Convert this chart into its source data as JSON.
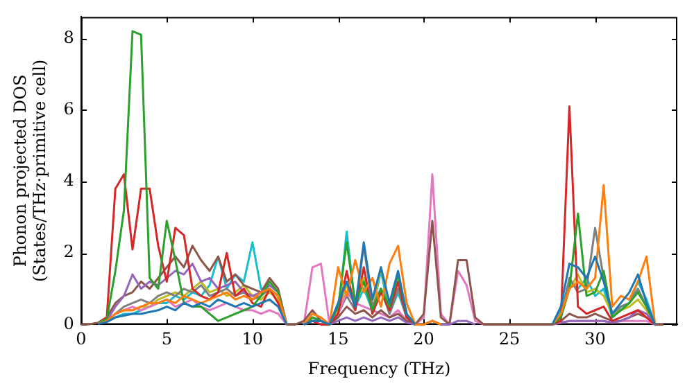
{
  "chart_data": {
    "type": "line",
    "xlabel": "Frequency (THz)",
    "ylabel": "Phonon projected DOS\n(States/THz·primitive cell)",
    "xlim": [
      0,
      34.8
    ],
    "ylim": [
      0,
      8.6
    ],
    "xticks": [
      0,
      5,
      10,
      15,
      20,
      25,
      30
    ],
    "yticks": [
      0,
      2,
      4,
      6,
      8
    ],
    "grid": false,
    "legend": false,
    "marker": "none",
    "line_style": "solid",
    "x": [
      0,
      0.5,
      1,
      1.5,
      2,
      2.5,
      3,
      3.5,
      4,
      4.5,
      5,
      5.5,
      6,
      6.5,
      7,
      7.5,
      8,
      8.5,
      9,
      9.5,
      10,
      10.5,
      11,
      11.5,
      12,
      12.5,
      13,
      13.5,
      14,
      14.5,
      15,
      15.5,
      16,
      16.5,
      17,
      17.5,
      18,
      18.5,
      19,
      19.5,
      20,
      20.5,
      21,
      21.5,
      22,
      22.5,
      23,
      23.5,
      24,
      24.5,
      25,
      25.5,
      26,
      26.5,
      27,
      27.5,
      28,
      28.5,
      29,
      29.5,
      30,
      30.5,
      31,
      31.5,
      32,
      32.5,
      33,
      33.5,
      34
    ],
    "series": [
      {
        "color": "#1f77b4",
        "values": [
          null,
          null,
          0.02,
          0.07,
          0.2,
          0.25,
          0.3,
          0.3,
          0.35,
          0.4,
          0.5,
          0.4,
          0.6,
          0.5,
          0.6,
          0.5,
          0.7,
          0.6,
          0.5,
          0.6,
          0.5,
          0.6,
          0.7,
          0.5,
          0,
          null,
          0,
          0.1,
          0.1,
          0,
          0.6,
          1.2,
          0.5,
          2.3,
          0.7,
          1.6,
          0.6,
          1.5,
          0.3,
          0,
          null,
          null,
          null,
          null,
          null,
          null,
          null,
          null,
          null,
          null,
          null,
          null,
          null,
          null,
          null,
          0,
          0.5,
          1.7,
          1.6,
          1.3,
          1.9,
          1.2,
          0.3,
          0.6,
          0.9,
          1.4,
          0.6,
          0,
          null
        ]
      },
      {
        "color": "#ff7f0e",
        "values": [
          null,
          null,
          0.03,
          0.1,
          0.3,
          0.4,
          0.4,
          0.5,
          0.6,
          0.6,
          0.7,
          0.6,
          0.8,
          0.7,
          0.6,
          0.7,
          0.8,
          0.9,
          0.7,
          0.8,
          0.7,
          0.9,
          1.0,
          0.8,
          0,
          null,
          0,
          0.3,
          0.2,
          0,
          1.6,
          0.8,
          1.8,
          0.9,
          1.3,
          0.5,
          1.7,
          2.2,
          0.6,
          0,
          0,
          0.1,
          0,
          null,
          null,
          null,
          null,
          null,
          null,
          null,
          null,
          null,
          null,
          null,
          null,
          0,
          0.3,
          1.0,
          1.2,
          1.0,
          1.3,
          3.9,
          0.5,
          0.8,
          0.7,
          1.2,
          1.9,
          0,
          null
        ]
      },
      {
        "color": "#2ca02c",
        "values": [
          null,
          null,
          0.05,
          0.15,
          1.5,
          3.2,
          8.2,
          8.1,
          1.3,
          1.0,
          2.9,
          1.8,
          0.6,
          0.5,
          0.5,
          0.3,
          0.1,
          0.2,
          0.3,
          0.4,
          0.5,
          0.8,
          1.2,
          0.9,
          0,
          null,
          0,
          0.2,
          0.1,
          0,
          0.5,
          2.3,
          0.6,
          1.2,
          0.4,
          1.0,
          0.5,
          1.4,
          0.3,
          0,
          0,
          0.1,
          0,
          null,
          null,
          null,
          null,
          null,
          null,
          null,
          null,
          null,
          null,
          null,
          null,
          0,
          0.2,
          1.0,
          3.1,
          0.8,
          0.9,
          1.5,
          0.2,
          0.4,
          0.6,
          0.9,
          0.5,
          0,
          null
        ]
      },
      {
        "color": "#d62728",
        "values": [
          null,
          null,
          0.05,
          0.2,
          3.8,
          4.2,
          2.1,
          3.8,
          3.8,
          2.2,
          1.2,
          2.7,
          2.5,
          1.0,
          0.8,
          0.7,
          0.9,
          2.0,
          0.8,
          1.0,
          0.6,
          0.5,
          1.0,
          0.6,
          0,
          null,
          0,
          0.1,
          0,
          0,
          0.3,
          1.5,
          0.4,
          1.6,
          0.3,
          0.9,
          0.4,
          1.2,
          0.2,
          0,
          null,
          null,
          null,
          null,
          null,
          null,
          null,
          null,
          null,
          null,
          null,
          null,
          null,
          null,
          null,
          0,
          0.1,
          6.1,
          0.5,
          0.3,
          0.4,
          0.5,
          0.1,
          0.2,
          0.3,
          0.4,
          0.2,
          0,
          null
        ]
      },
      {
        "color": "#9467bd",
        "values": [
          null,
          null,
          0.03,
          0.1,
          0.5,
          0.8,
          1.4,
          1.0,
          1.2,
          1.1,
          1.3,
          1.5,
          1.4,
          1.7,
          1.2,
          1.3,
          1.0,
          1.1,
          1.2,
          0.9,
          0.8,
          0.9,
          1.1,
          0.9,
          0,
          null,
          0,
          0.1,
          0.1,
          0,
          0.1,
          0.2,
          0.1,
          0.2,
          0.1,
          0.2,
          0.1,
          0.2,
          0.05,
          0,
          0,
          0.1,
          0,
          0,
          0.1,
          0.1,
          0,
          null,
          null,
          null,
          null,
          null,
          null,
          null,
          null,
          0,
          0.05,
          0.1,
          0.1,
          0.1,
          0.1,
          0.1,
          0.05,
          0.1,
          0.2,
          0.4,
          0.3,
          0,
          null
        ]
      },
      {
        "color": "#8c564b",
        "values": [
          0,
          0.01,
          0.05,
          0.2,
          0.6,
          0.8,
          0.9,
          1.2,
          1.0,
          1.3,
          1.6,
          1.9,
          1.6,
          2.2,
          1.8,
          1.5,
          1.9,
          1.2,
          1.4,
          1.1,
          1.0,
          0.9,
          1.3,
          1.0,
          0,
          0,
          0.1,
          0.4,
          0.1,
          0,
          0.2,
          0.5,
          0.3,
          0.4,
          0.2,
          0.4,
          0.2,
          0.3,
          0.1,
          0,
          0.3,
          2.9,
          0.2,
          0,
          1.8,
          1.8,
          0.2,
          0,
          0,
          0,
          0,
          0,
          0,
          0,
          0,
          0,
          0.1,
          0.3,
          0.2,
          0.2,
          0.3,
          0.2,
          0.1,
          0.1,
          0.2,
          0.3,
          0.2,
          0,
          0
        ]
      },
      {
        "color": "#e377c2",
        "values": [
          null,
          null,
          0.03,
          0.1,
          0.3,
          0.4,
          0.5,
          0.4,
          0.5,
          0.6,
          0.7,
          0.5,
          0.6,
          0.7,
          0.5,
          0.4,
          0.5,
          0.6,
          0.5,
          0.4,
          0.4,
          0.3,
          0.4,
          0.3,
          0,
          null,
          0,
          1.6,
          1.7,
          0,
          0.3,
          0.9,
          0.6,
          0.5,
          0.4,
          0.3,
          0.2,
          0.4,
          0.1,
          0,
          0.2,
          4.2,
          0.3,
          0,
          1.5,
          1.1,
          0.1,
          0,
          null,
          null,
          null,
          null,
          null,
          null,
          null,
          0,
          0.05,
          0.1,
          0.1,
          0.1,
          0.1,
          0.1,
          0.05,
          0.1,
          0.1,
          0.1,
          0.1,
          0,
          null
        ]
      },
      {
        "color": "#7f7f7f",
        "values": [
          null,
          null,
          0.03,
          0.1,
          0.3,
          0.5,
          0.6,
          0.7,
          0.6,
          0.8,
          0.9,
          0.8,
          1.0,
          0.9,
          1.1,
          0.8,
          0.9,
          1.0,
          0.8,
          0.9,
          0.7,
          0.8,
          1.0,
          0.8,
          0,
          null,
          0,
          0.2,
          0.1,
          0,
          0.3,
          0.8,
          0.4,
          2.2,
          0.5,
          1.0,
          0.3,
          1.0,
          0.2,
          0,
          0,
          0.1,
          0,
          null,
          null,
          null,
          null,
          null,
          null,
          null,
          null,
          null,
          null,
          null,
          null,
          0,
          0.2,
          1.3,
          0.9,
          1.0,
          2.7,
          1.3,
          0.3,
          0.5,
          0.6,
          1.0,
          0.5,
          0,
          null
        ]
      },
      {
        "color": "#bcbd22",
        "values": [
          null,
          null,
          null,
          null,
          0.3,
          0.4,
          0.4,
          0.5,
          0.5,
          0.7,
          0.8,
          0.9,
          0.8,
          1.0,
          1.2,
          0.9,
          1.0,
          0.8,
          0.9,
          1.1,
          0.8,
          0.7,
          0.9,
          0.7,
          0,
          null,
          0,
          0.2,
          0.1,
          0,
          0.4,
          1.1,
          0.5,
          1.3,
          0.4,
          1.6,
          0.5,
          1.4,
          0.2,
          0,
          null,
          null,
          null,
          null,
          null,
          null,
          null,
          null,
          null,
          null,
          null,
          null,
          null,
          null,
          null,
          0,
          0.2,
          1.0,
          1.4,
          0.9,
          1.0,
          0.8,
          0.3,
          0.4,
          0.5,
          0.7,
          0.4,
          0,
          null
        ]
      },
      {
        "color": "#17becf",
        "values": [
          null,
          null,
          0.02,
          0.08,
          0.2,
          0.3,
          0.3,
          0.4,
          0.5,
          0.6,
          0.6,
          0.8,
          0.7,
          0.9,
          0.8,
          1.1,
          1.9,
          1.0,
          1.4,
          1.2,
          2.3,
          1.0,
          1.0,
          0.8,
          0,
          null,
          0,
          0.1,
          0.1,
          0,
          0.3,
          2.6,
          0.5,
          1.0,
          0.4,
          1.5,
          0.3,
          0.9,
          0.2,
          0,
          null,
          null,
          null,
          null,
          null,
          null,
          null,
          null,
          null,
          null,
          null,
          null,
          null,
          null,
          null,
          0,
          0.4,
          1.2,
          1.0,
          1.3,
          0.8,
          1.0,
          0.2,
          0.5,
          0.6,
          1.2,
          0.7,
          0,
          null
        ]
      }
    ]
  }
}
